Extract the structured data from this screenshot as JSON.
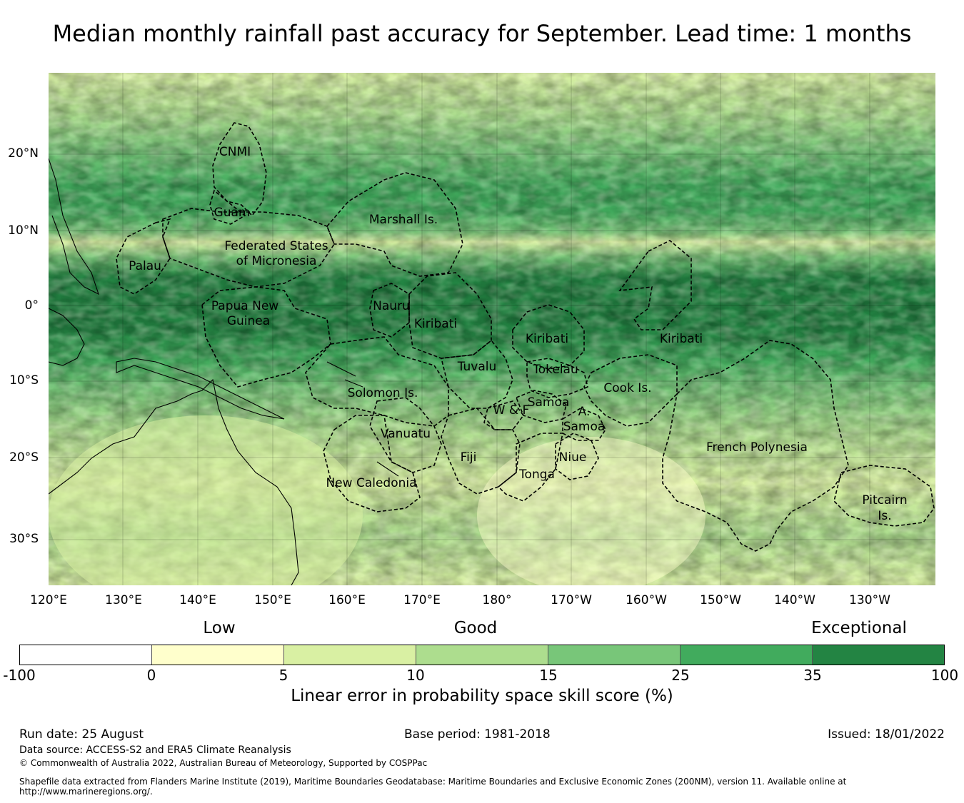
{
  "title": "Median monthly rainfall past accuracy for September. Lead time: 1 months",
  "map": {
    "lat_labels": [
      "20°N",
      "10°N",
      "0°",
      "10°S",
      "20°S",
      "30°S"
    ],
    "lon_labels": [
      "120°E",
      "130°E",
      "140°E",
      "150°E",
      "160°E",
      "170°E",
      "180°",
      "170°W",
      "160°W",
      "150°W",
      "140°W",
      "130°W"
    ],
    "regions": [
      "CNMI",
      "Guam",
      "Marshall Is.",
      "Federated States",
      "of Micronesia",
      "Palau",
      "Papua New",
      "Guinea",
      "Nauru",
      "Kiribati",
      "Kiribati",
      "Kiribati",
      "Solomon Is.",
      "Tuvalu",
      "Tokelau",
      "Cook Is.",
      "Samoa",
      "A.",
      "Samoa",
      "W & F",
      "Vanuatu",
      "Fiji",
      "Niue",
      "Tonga",
      "New Caledonia",
      "French Polynesia",
      "Pitcairn",
      "Is."
    ]
  },
  "legend": {
    "category_words": [
      "Low",
      "Good",
      "Exceptional"
    ],
    "ticks": [
      "-100",
      "0",
      "5",
      "10",
      "15",
      "25",
      "35",
      "100"
    ],
    "colors": [
      "#ffffff",
      "#ffffcc",
      "#d9f0a3",
      "#addd8e",
      "#78c679",
      "#41ab5d",
      "#238443"
    ],
    "title": "Linear error in probability space skill score (%)"
  },
  "footer": {
    "run_date": "Run date: 25 August",
    "base_period": "Base period: 1981-2018",
    "issued": "Issued: 18/01/2022",
    "data_source": "Data source: ACCESS-S2 and ERA5 Climate Reanalysis",
    "copyright": "© Commonwealth of Australia 2022, Australian Bureau of Meteorology, Supported by COSPPac",
    "shapefile": "Shapefile data extracted from Flanders Marine Institute (2019), Maritime Boundaries Geodatabase: Maritime Boundaries and Exclusive Economic Zones (200NM), version 11. Available online at http://www.marineregions.org/."
  }
}
